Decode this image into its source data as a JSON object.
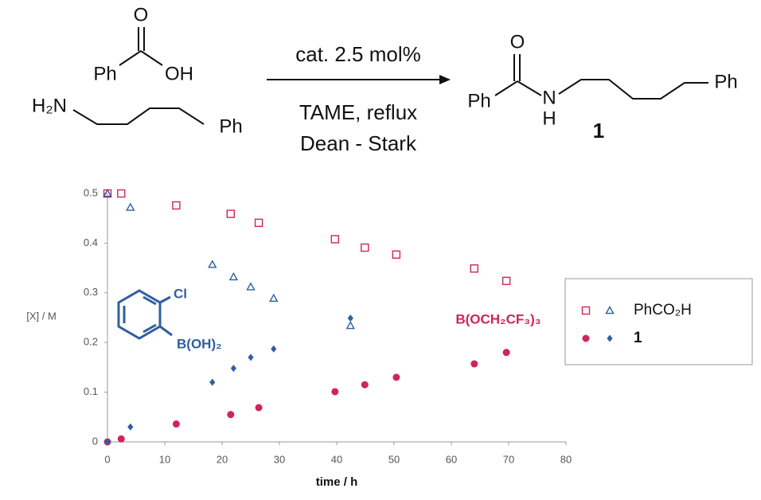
{
  "scheme": {
    "acid": {
      "o": "O",
      "ph": "Ph",
      "oh": "OH"
    },
    "amine": {
      "nh2": "H₂N",
      "ph": "Ph"
    },
    "conditions": [
      "cat. 2.5 mol%",
      "TAME, reflux",
      "Dean - Stark"
    ],
    "product": {
      "o": "O",
      "ph_left": "Ph",
      "n": "N",
      "h": "H",
      "ph_right": "Ph",
      "label": "1"
    }
  },
  "chart_data": {
    "type": "scatter",
    "xlabel": "time / h",
    "ylabel": "[X] / M",
    "xlim": [
      0,
      80
    ],
    "xticks": [
      0,
      10,
      20,
      30,
      40,
      50,
      60,
      70,
      80
    ],
    "ylim": [
      0,
      0.5
    ],
    "yticks": [
      0,
      0.1,
      0.2,
      0.3,
      0.4,
      0.5
    ],
    "legend": "right",
    "series": [
      {
        "name": "PhCO₂H",
        "marker": "square",
        "color": "#d0245a",
        "x": [
          0,
          2.4,
          12,
          21.5,
          26.4,
          39.7,
          44.9,
          50.4,
          64,
          69.6
        ],
        "values": [
          0.5,
          0.5,
          0.476,
          0.459,
          0.441,
          0.408,
          0.391,
          0.377,
          0.349,
          0.324
        ]
      },
      {
        "name": "PhCO₂H",
        "marker": "triangle",
        "color": "#2f5f9e",
        "x": [
          0,
          4,
          18.3,
          22,
          25,
          29,
          42.4
        ],
        "values": [
          0.5,
          0.472,
          0.357,
          0.332,
          0.312,
          0.289,
          0.234
        ]
      },
      {
        "name": "1",
        "marker": "circle",
        "color": "#d0245a",
        "x": [
          0,
          2.4,
          12,
          21.5,
          26.4,
          39.7,
          44.9,
          50.4,
          64,
          69.6
        ],
        "values": [
          0,
          0.006,
          0.036,
          0.055,
          0.069,
          0.101,
          0.115,
          0.13,
          0.157,
          0.18
        ]
      },
      {
        "name": "1",
        "marker": "diamond",
        "color": "#2f5f9e",
        "x": [
          0,
          4,
          18.3,
          22,
          25,
          29,
          42.4
        ],
        "values": [
          0,
          0.03,
          0.12,
          0.148,
          0.17,
          0.187,
          0.249
        ]
      }
    ],
    "annotations": [
      {
        "text": "B(OCH₂CF₃)₃",
        "color": "#d0245a"
      },
      {
        "text": "Cl",
        "color": "#2f5f9e"
      },
      {
        "text": "B(OH)₂",
        "color": "#2f5f9e"
      }
    ]
  }
}
